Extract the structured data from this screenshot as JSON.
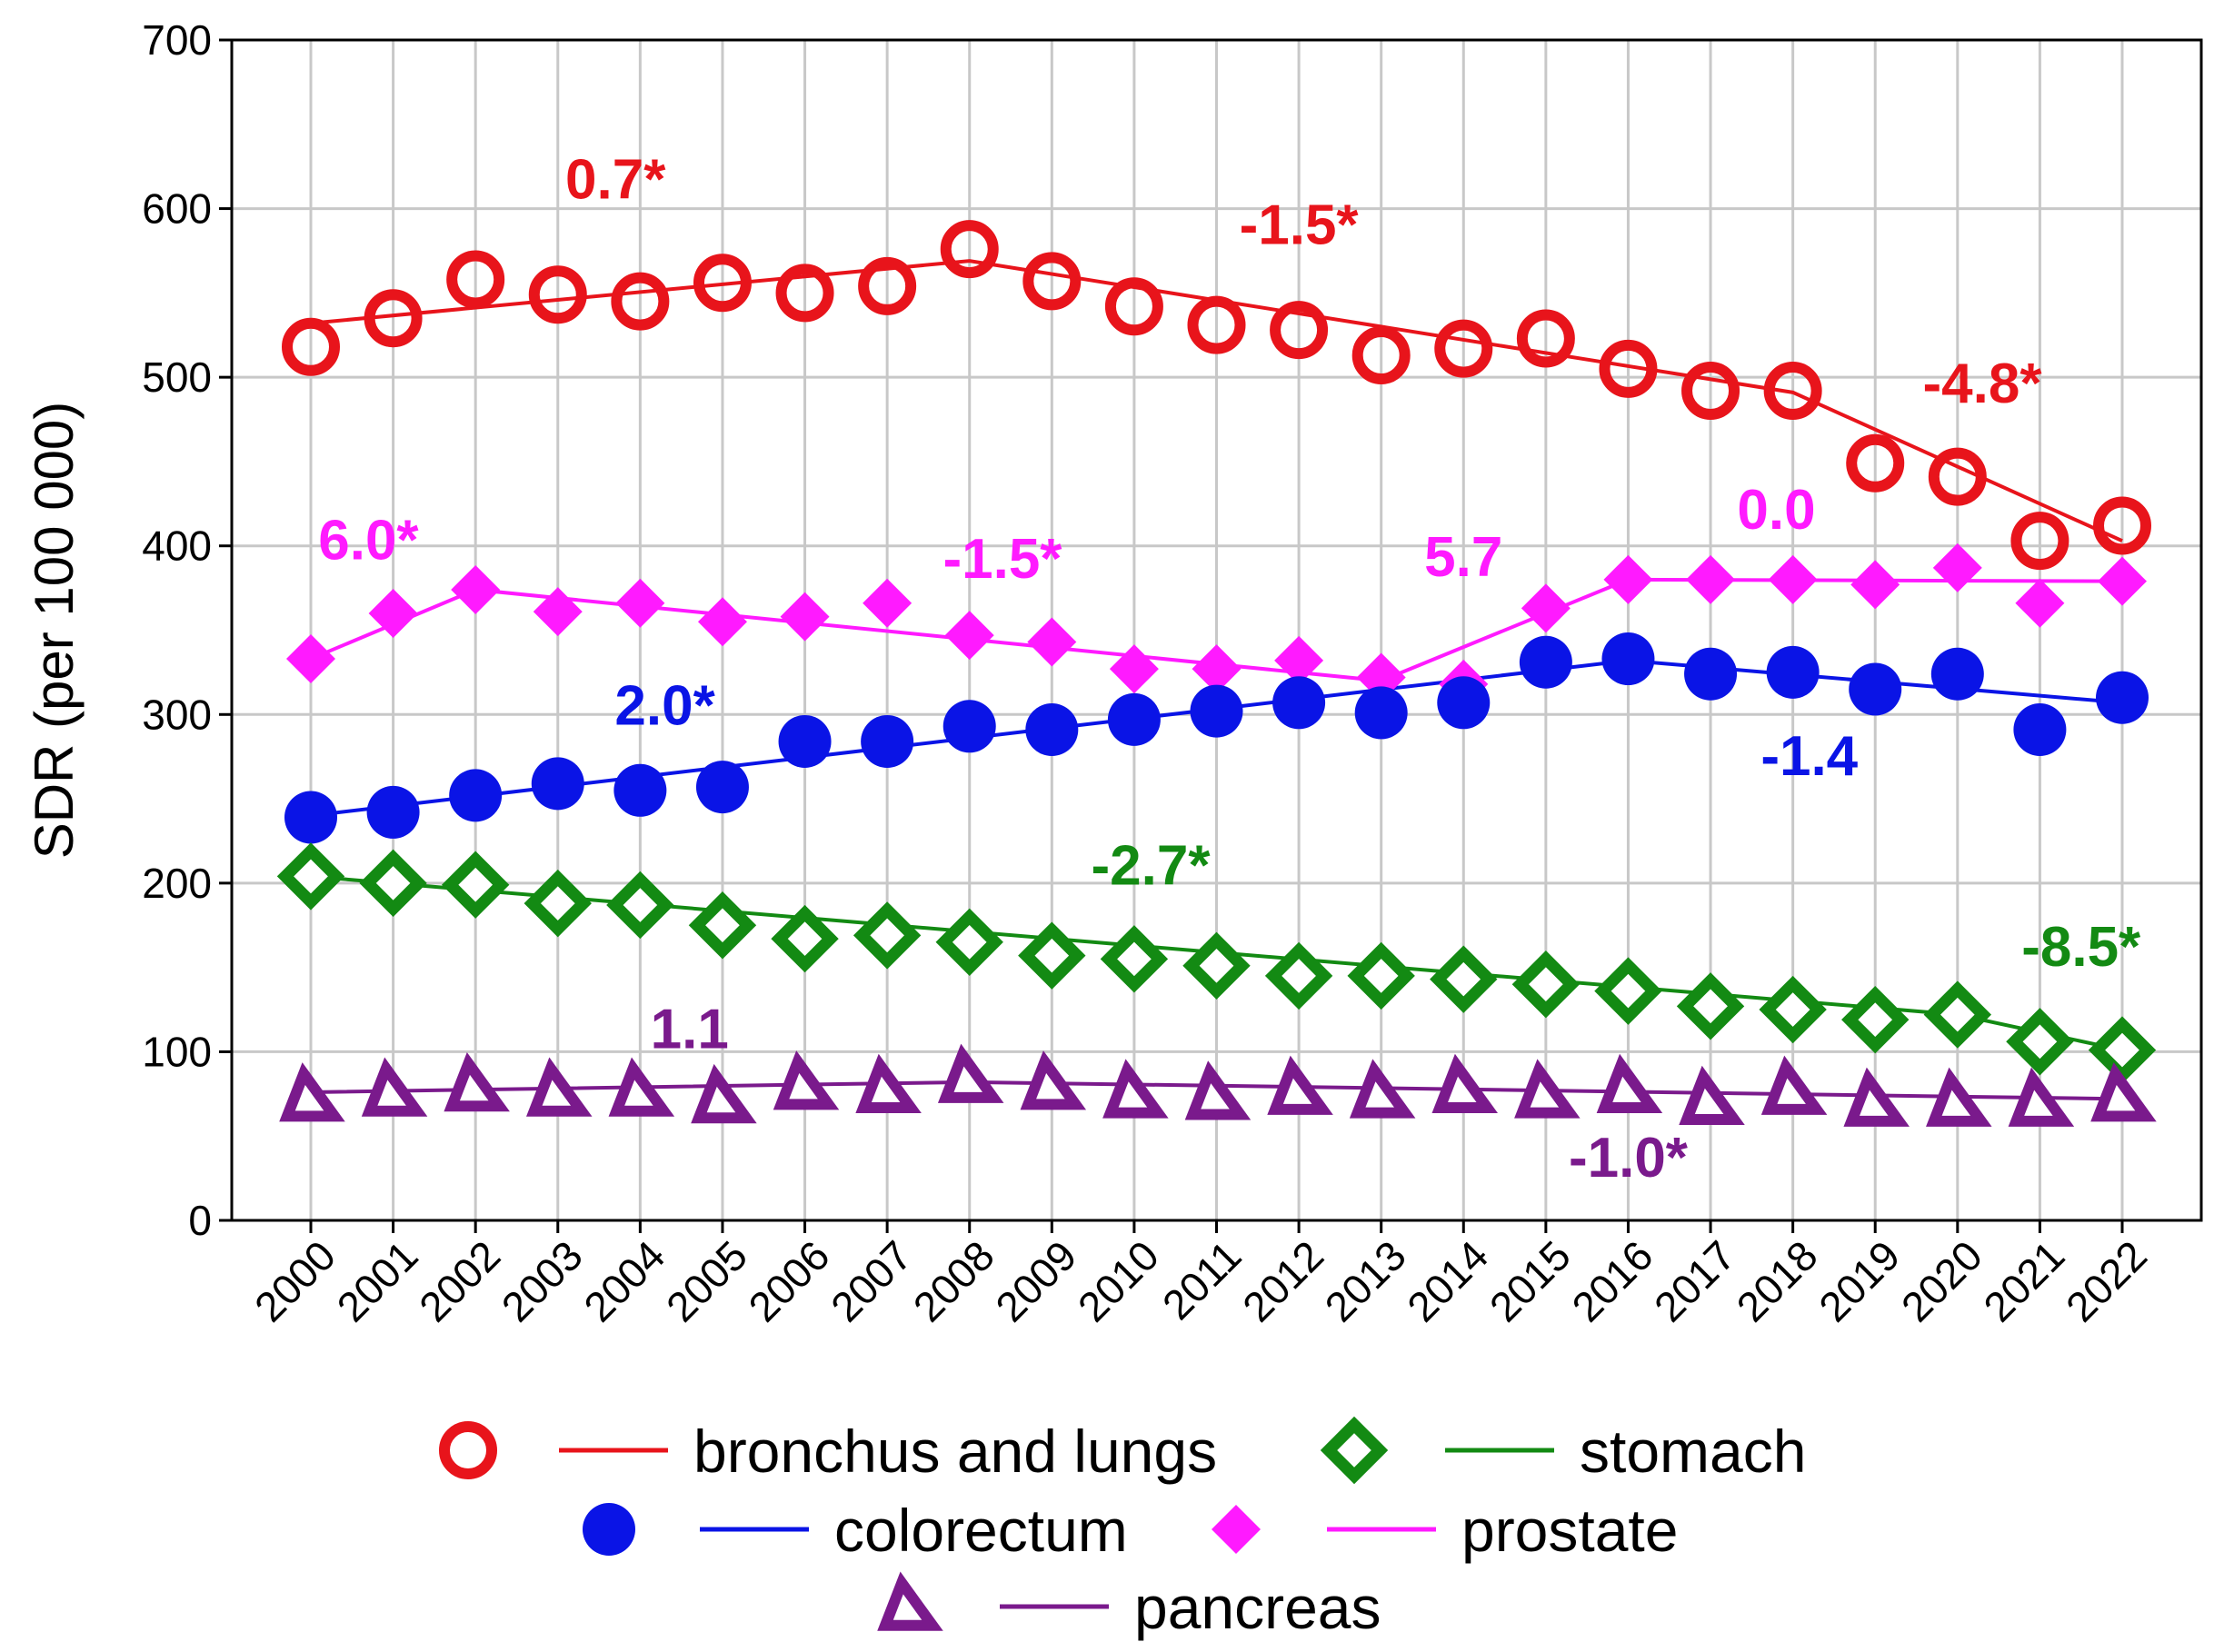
{
  "chart_data": {
    "type": "line",
    "title": "",
    "xlabel": "",
    "ylabel": "SDR (per 100 000)",
    "ylim": [
      0,
      700
    ],
    "yticks": [
      0,
      100,
      200,
      300,
      400,
      500,
      600,
      700
    ],
    "grid": true,
    "categories": [
      "2000",
      "2001",
      "2002",
      "2003",
      "2004",
      "2005",
      "2006",
      "2007",
      "2008",
      "2009",
      "2010",
      "2011",
      "2012",
      "2013",
      "2014",
      "2015",
      "2016",
      "2017",
      "2018",
      "2019",
      "2020",
      "2021",
      "2022"
    ],
    "series": [
      {
        "name": "bronchus and lungs",
        "color": "#e8141b",
        "marker": "ring",
        "values": [
          518,
          535,
          558,
          549,
          545,
          556,
          550,
          554,
          576,
          557,
          542,
          531,
          528,
          513,
          517,
          523,
          505,
          492,
          492,
          449,
          441,
          403,
          412
        ],
        "trend": [
          [
            0,
            532
          ],
          [
            8,
            569
          ],
          [
            18,
            491
          ],
          [
            22,
            403
          ]
        ]
      },
      {
        "name": "prostate",
        "color": "#ff1aff",
        "marker": "diamond",
        "values": [
          333,
          360,
          374,
          361,
          366,
          355,
          358,
          366,
          347,
          343,
          327,
          327,
          332,
          322,
          318,
          363,
          380,
          380,
          380,
          377,
          387,
          366,
          379
        ],
        "trend": [
          [
            0,
            333
          ],
          [
            2,
            374
          ],
          [
            13,
            320
          ],
          [
            16,
            380
          ],
          [
            22,
            379
          ]
        ]
      },
      {
        "name": "colorectum",
        "color": "#0a14e6",
        "marker": "dot",
        "values": [
          239,
          242,
          252,
          259,
          255,
          257,
          284,
          284,
          293,
          291,
          297,
          302,
          307,
          301,
          307,
          331,
          333,
          324,
          325,
          315,
          324,
          291,
          310
        ],
        "trend": [
          [
            0,
            240
          ],
          [
            16,
            332
          ],
          [
            22,
            307
          ]
        ]
      },
      {
        "name": "stomach",
        "color": "#138a13",
        "marker": "ring-diamond",
        "values": [
          204,
          200,
          199,
          188,
          187,
          175,
          167,
          169,
          165,
          157,
          155,
          151,
          145,
          145,
          143,
          140,
          136,
          127,
          125,
          119,
          122,
          106,
          101
        ],
        "trend": [
          [
            0,
            204
          ],
          [
            20,
            122
          ],
          [
            22,
            101
          ]
        ]
      },
      {
        "name": "pancreas",
        "color": "#7a1a8c",
        "marker": "triangle",
        "values": [
          73,
          76,
          79,
          76,
          76,
          72,
          80,
          78,
          84,
          80,
          75,
          74,
          77,
          75,
          78,
          75,
          78,
          71,
          77,
          70,
          70,
          70,
          73
        ],
        "trend": [
          [
            0,
            76
          ],
          [
            8,
            82
          ],
          [
            22,
            72
          ]
        ]
      }
    ],
    "annotations": [
      {
        "text": "0.7*",
        "series": "bronchus and lungs",
        "x": 3.7,
        "y": 606
      },
      {
        "text": "-1.5*",
        "series": "bronchus and lungs",
        "x": 12.0,
        "y": 579
      },
      {
        "text": "-4.8*",
        "series": "bronchus and lungs",
        "x": 20.3,
        "y": 485
      },
      {
        "text": "6.0*",
        "series": "prostate",
        "x": 0.7,
        "y": 392
      },
      {
        "text": "-1.5*",
        "series": "prostate",
        "x": 8.4,
        "y": 381
      },
      {
        "text": "5.7",
        "series": "prostate",
        "x": 14.0,
        "y": 382
      },
      {
        "text": "0.0",
        "series": "prostate",
        "x": 17.8,
        "y": 410
      },
      {
        "text": "2.0*",
        "series": "colorectum",
        "x": 4.3,
        "y": 294
      },
      {
        "text": "-1.4",
        "series": "colorectum",
        "x": 18.2,
        "y": 264
      },
      {
        "text": "-2.7*",
        "series": "stomach",
        "x": 10.2,
        "y": 199
      },
      {
        "text": "-8.5*",
        "series": "stomach",
        "x": 21.5,
        "y": 151
      },
      {
        "text": "1.1",
        "series": "pancreas",
        "x": 4.6,
        "y": 102
      },
      {
        "text": "-1.0*",
        "series": "pancreas",
        "x": 16.0,
        "y": 26
      }
    ],
    "legend": {
      "position": "bottom",
      "rows": [
        [
          "bronchus and lungs",
          "stomach"
        ],
        [
          "colorectum",
          "prostate"
        ],
        [
          "pancreas"
        ]
      ]
    }
  }
}
